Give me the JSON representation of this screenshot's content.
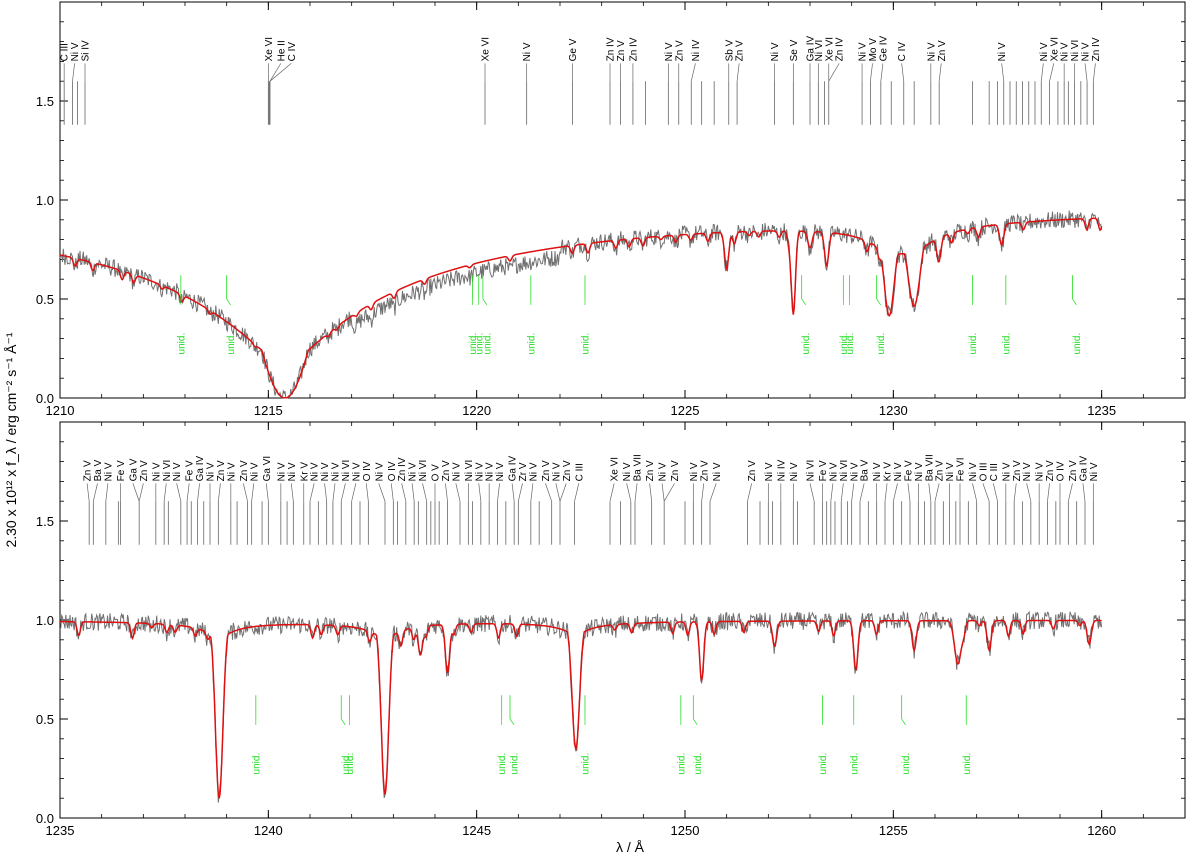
{
  "chart_data": {
    "type": "line",
    "xlabel": "λ / Å",
    "ylabel": "2.30 x 10¹² x f_λ / erg cm⁻² s⁻¹ Å⁻¹",
    "series_colors": {
      "observed": "#707070",
      "model": "#dd1111",
      "identified": "#666666",
      "unidentified": "#22dd22"
    },
    "panels": [
      {
        "xlim": [
          1210,
          1237
        ],
        "ylim": [
          0,
          2.0
        ],
        "xticks": [
          1210,
          1215,
          1220,
          1225,
          1230,
          1235
        ],
        "yticks": [
          "0.0",
          "0.5",
          "1.0",
          "1.5"
        ],
        "ytick_values": [
          0.0,
          0.5,
          1.0,
          1.5
        ],
        "model_end": 1235,
        "absorption_lines": [
          {
            "center": 1215.4,
            "depth": 1.0,
            "width": 0.75,
            "wings": 0.85
          },
          {
            "center": 1229.9,
            "depth": 0.5,
            "width": 0.12,
            "wings": 0.15
          },
          {
            "center": 1230.5,
            "depth": 0.45,
            "width": 0.14,
            "wings": 0.15
          },
          {
            "center": 1227.6,
            "depth": 0.5,
            "width": 0.05,
            "wings": 0.0
          },
          {
            "center": 1228.4,
            "depth": 0.2,
            "width": 0.05,
            "wings": 0.0
          },
          {
            "center": 1226.0,
            "depth": 0.22,
            "width": 0.05,
            "wings": 0.0
          },
          {
            "center": 1232.6,
            "depth": 0.12,
            "width": 0.05,
            "wings": 0.0
          },
          {
            "center": 1231.1,
            "depth": 0.1,
            "width": 0.05,
            "wings": 0.0
          },
          {
            "center": 1228.0,
            "depth": 0.1,
            "width": 0.05,
            "wings": 0.0
          }
        ],
        "ion_labels": [
          {
            "label": "C III",
            "x": 1210.1
          },
          {
            "label": "Ni V",
            "x": 1210.35
          },
          {
            "label": "Si IV",
            "x": 1210.6
          },
          {
            "label": "Xe VI",
            "x": 1215.0
          },
          {
            "label": "He II",
            "x": 1215.3
          },
          {
            "label": "C IV",
            "x": 1215.55
          },
          {
            "label": "Xe VI",
            "x": 1220.2
          },
          {
            "label": "Ni V",
            "x": 1221.2
          },
          {
            "label": "Ge V",
            "x": 1222.3
          },
          {
            "label": "Zn IV",
            "x": 1223.2
          },
          {
            "label": "Zn V",
            "x": 1223.45
          },
          {
            "label": "Zn IV",
            "x": 1223.75
          },
          {
            "label": "Ni V",
            "x": 1224.6
          },
          {
            "label": "Zn V",
            "x": 1224.85
          },
          {
            "label": "Ni IV",
            "x": 1225.25
          },
          {
            "label": "Sb V",
            "x": 1226.05
          },
          {
            "label": "Zn V",
            "x": 1226.3
          },
          {
            "label": "Ni V",
            "x": 1227.15
          },
          {
            "label": "Se V",
            "x": 1227.6
          },
          {
            "label": "Ga IV",
            "x": 1228.0
          },
          {
            "label": "Ni VI",
            "x": 1228.2
          },
          {
            "label": "Xe VI",
            "x": 1228.45
          },
          {
            "label": "Zn IV",
            "x": 1228.7
          },
          {
            "label": "Ni V",
            "x": 1229.25
          },
          {
            "label": "Mo V",
            "x": 1229.5
          },
          {
            "label": "Ge IV",
            "x": 1229.75
          },
          {
            "label": "C IV",
            "x": 1230.2
          },
          {
            "label": "Ni V",
            "x": 1230.9
          },
          {
            "label": "Zn V",
            "x": 1231.15
          },
          {
            "label": "Ni V",
            "x": 1232.6
          },
          {
            "label": "Ni V",
            "x": 1233.6
          },
          {
            "label": "Xe VI",
            "x": 1233.85
          },
          {
            "label": "Ni V",
            "x": 1234.1
          },
          {
            "label": "Ni VI",
            "x": 1234.35
          },
          {
            "label": "Ni V",
            "x": 1234.6
          },
          {
            "label": "Zn IV",
            "x": 1234.85
          }
        ],
        "ion_ticks": [
          1210.1,
          1210.3,
          1210.42,
          1210.6,
          1215.0,
          1215.02,
          1215.04,
          1220.2,
          1221.2,
          1222.3,
          1223.2,
          1223.45,
          1223.75,
          1224.05,
          1224.6,
          1224.85,
          1225.15,
          1225.4,
          1225.7,
          1226.05,
          1226.25,
          1227.15,
          1227.6,
          1228.0,
          1228.2,
          1228.35,
          1228.45,
          1229.25,
          1229.45,
          1229.7,
          1229.95,
          1230.25,
          1230.5,
          1230.9,
          1231.1,
          1231.9,
          1232.3,
          1232.5,
          1232.65,
          1232.8,
          1232.95,
          1233.1,
          1233.25,
          1233.4,
          1233.55,
          1233.75,
          1233.95,
          1234.1,
          1234.2,
          1234.35,
          1234.5,
          1234.65,
          1234.8
        ],
        "unid": [
          1212.9,
          1214.0,
          1219.9,
          1220.05,
          1220.15,
          1221.3,
          1222.6,
          1227.8,
          1228.8,
          1228.95,
          1229.6,
          1231.9,
          1232.7,
          1234.3
        ],
        "unid_label": "unid."
      },
      {
        "xlim": [
          1235,
          1262
        ],
        "ylim": [
          0,
          2.0
        ],
        "xticks": [
          1235,
          1240,
          1245,
          1250,
          1255,
          1260
        ],
        "yticks": [
          "0.0",
          "0.5",
          "1.0",
          "1.5"
        ],
        "ytick_values": [
          0.0,
          0.5,
          1.0,
          1.5
        ],
        "model_end": 1260,
        "absorption_lines": [
          {
            "center": 1238.82,
            "depth": 0.9,
            "width": 0.09,
            "wings": 0.1
          },
          {
            "center": 1242.8,
            "depth": 0.88,
            "width": 0.09,
            "wings": 0.1
          },
          {
            "center": 1247.38,
            "depth": 0.65,
            "width": 0.09,
            "wings": 0.08
          },
          {
            "center": 1244.3,
            "depth": 0.25,
            "width": 0.05,
            "wings": 0.0
          },
          {
            "center": 1243.65,
            "depth": 0.15,
            "width": 0.05,
            "wings": 0.0
          },
          {
            "center": 1250.4,
            "depth": 0.3,
            "width": 0.05,
            "wings": 0.0
          },
          {
            "center": 1254.1,
            "depth": 0.25,
            "width": 0.05,
            "wings": 0.0
          },
          {
            "center": 1256.55,
            "depth": 0.22,
            "width": 0.08,
            "wings": 0.0
          },
          {
            "center": 1257.3,
            "depth": 0.15,
            "width": 0.05,
            "wings": 0.0
          },
          {
            "center": 1255.5,
            "depth": 0.15,
            "width": 0.05,
            "wings": 0.0
          },
          {
            "center": 1259.7,
            "depth": 0.12,
            "width": 0.05,
            "wings": 0.0
          },
          {
            "center": 1252.15,
            "depth": 0.13,
            "width": 0.05,
            "wings": 0.0
          }
        ],
        "ion_labels": [
          {
            "label": "Zn V",
            "x": 1235.65
          },
          {
            "label": "Ba V",
            "x": 1235.9
          },
          {
            "label": "Ni V",
            "x": 1236.15
          },
          {
            "label": "Fe V",
            "x": 1236.45
          },
          {
            "label": "Ga V",
            "x": 1236.75
          },
          {
            "label": "Zn V",
            "x": 1237.0
          },
          {
            "label": "Ni V",
            "x": 1237.3
          },
          {
            "label": "Ni VI",
            "x": 1237.55
          },
          {
            "label": "Ni V",
            "x": 1237.8
          },
          {
            "label": "Fe V",
            "x": 1238.1
          },
          {
            "label": "Ga IV",
            "x": 1238.35
          },
          {
            "label": "Ni V",
            "x": 1238.6
          },
          {
            "label": "Zn V",
            "x": 1238.85
          },
          {
            "label": "Ni V",
            "x": 1239.1
          },
          {
            "label": "Zn V",
            "x": 1239.4
          },
          {
            "label": "Ni V",
            "x": 1239.65
          },
          {
            "label": "Ga VI",
            "x": 1239.95
          },
          {
            "label": "Ni V",
            "x": 1240.3
          },
          {
            "label": "Ni V",
            "x": 1240.55
          },
          {
            "label": "Kr V",
            "x": 1240.85
          },
          {
            "label": "Ni V",
            "x": 1241.1
          },
          {
            "label": "Ni V",
            "x": 1241.35
          },
          {
            "label": "Ni V",
            "x": 1241.6
          },
          {
            "label": "Ni VI",
            "x": 1241.85
          },
          {
            "label": "Ni V",
            "x": 1242.1
          },
          {
            "label": "O IV",
            "x": 1242.35
          },
          {
            "label": "Ni V",
            "x": 1242.65
          },
          {
            "label": "O IV",
            "x": 1242.95
          },
          {
            "label": "Zn IV",
            "x": 1243.2
          },
          {
            "label": "Ni V",
            "x": 1243.45
          },
          {
            "label": "Ni VI",
            "x": 1243.7
          },
          {
            "label": "O V",
            "x": 1244.0
          },
          {
            "label": "Zn V",
            "x": 1244.25
          },
          {
            "label": "Ni V",
            "x": 1244.5
          },
          {
            "label": "Ni VI",
            "x": 1244.8
          },
          {
            "label": "Ni V",
            "x": 1245.05
          },
          {
            "label": "Ni V",
            "x": 1245.3
          },
          {
            "label": "Ni V",
            "x": 1245.55
          },
          {
            "label": "Ga IV",
            "x": 1245.85
          },
          {
            "label": "Zr V",
            "x": 1246.1
          },
          {
            "label": "Ni V",
            "x": 1246.35
          },
          {
            "label": "Zn V",
            "x": 1246.65
          },
          {
            "label": "Ni V",
            "x": 1246.9
          },
          {
            "label": "Zn V",
            "x": 1247.15
          },
          {
            "label": "C III",
            "x": 1247.45
          },
          {
            "label": "Xe VI",
            "x": 1248.3
          },
          {
            "label": "Ni V",
            "x": 1248.6
          },
          {
            "label": "Ba VII",
            "x": 1248.85
          },
          {
            "label": "Zn V",
            "x": 1249.15
          },
          {
            "label": "Ni V",
            "x": 1249.45
          },
          {
            "label": "Zn V",
            "x": 1249.75
          },
          {
            "label": "Ni V",
            "x": 1250.2
          },
          {
            "label": "Zn V",
            "x": 1250.45
          },
          {
            "label": "Ni V",
            "x": 1250.75
          },
          {
            "label": "Zn V",
            "x": 1251.6
          },
          {
            "label": "Ni V",
            "x": 1252.0
          },
          {
            "label": "Ni IV",
            "x": 1252.3
          },
          {
            "label": "Ni V",
            "x": 1252.6
          },
          {
            "label": "Ni VI",
            "x": 1253.0
          },
          {
            "label": "Fe V",
            "x": 1253.3
          },
          {
            "label": "Ni V",
            "x": 1253.55
          },
          {
            "label": "Ni VI",
            "x": 1253.8
          },
          {
            "label": "Ni V",
            "x": 1254.05
          },
          {
            "label": "Ba V",
            "x": 1254.3
          },
          {
            "label": "Ni V",
            "x": 1254.6
          },
          {
            "label": "Kr V",
            "x": 1254.85
          },
          {
            "label": "Ni V",
            "x": 1255.1
          },
          {
            "label": "Fe V",
            "x": 1255.35
          },
          {
            "label": "Ni V",
            "x": 1255.6
          },
          {
            "label": "Ba VII",
            "x": 1255.85
          },
          {
            "label": "Zn V",
            "x": 1256.1
          },
          {
            "label": "Ni V",
            "x": 1256.35
          },
          {
            "label": "Fe VI",
            "x": 1256.6
          },
          {
            "label": "Ni V",
            "x": 1256.9
          },
          {
            "label": "O III",
            "x": 1257.15
          },
          {
            "label": "C III",
            "x": 1257.4
          },
          {
            "label": "Ni V",
            "x": 1257.7
          },
          {
            "label": "Zn V",
            "x": 1257.95
          },
          {
            "label": "Ni V",
            "x": 1258.2
          },
          {
            "label": "Ni V",
            "x": 1258.5
          },
          {
            "label": "Zn V",
            "x": 1258.75
          },
          {
            "label": "O IV",
            "x": 1259.0
          },
          {
            "label": "Zn V",
            "x": 1259.3
          },
          {
            "label": "Ga IV",
            "x": 1259.55
          },
          {
            "label": "Ni V",
            "x": 1259.8
          }
        ],
        "ion_ticks": [
          1235.7,
          1235.8,
          1236.1,
          1236.4,
          1236.45,
          1236.9,
          1237.3,
          1237.5,
          1237.6,
          1237.9,
          1238.05,
          1238.15,
          1238.3,
          1238.45,
          1238.6,
          1238.8,
          1239.1,
          1239.25,
          1239.5,
          1239.6,
          1239.85,
          1240.0,
          1240.3,
          1240.45,
          1240.6,
          1240.85,
          1241.0,
          1241.2,
          1241.4,
          1241.55,
          1241.75,
          1242.0,
          1242.2,
          1242.4,
          1242.8,
          1243.0,
          1243.1,
          1243.3,
          1243.5,
          1243.6,
          1243.8,
          1243.9,
          1244.0,
          1244.1,
          1244.3,
          1244.6,
          1244.8,
          1244.9,
          1245.1,
          1245.3,
          1245.5,
          1245.7,
          1245.9,
          1246.0,
          1246.3,
          1246.5,
          1246.8,
          1247.0,
          1247.35,
          1248.2,
          1248.45,
          1248.7,
          1248.8,
          1249.2,
          1249.5,
          1250.0,
          1250.2,
          1250.4,
          1250.6,
          1251.5,
          1251.8,
          1252.0,
          1252.1,
          1252.3,
          1252.6,
          1252.7,
          1253.1,
          1253.3,
          1253.4,
          1253.5,
          1253.6,
          1253.75,
          1253.9,
          1254.0,
          1254.2,
          1254.4,
          1254.6,
          1254.8,
          1255.0,
          1255.2,
          1255.4,
          1255.6,
          1255.75,
          1255.9,
          1256.0,
          1256.2,
          1256.35,
          1256.5,
          1256.6,
          1256.8,
          1257.0,
          1257.3,
          1257.5,
          1257.7,
          1257.9,
          1258.1,
          1258.3,
          1258.5,
          1258.7,
          1258.9,
          1259.0,
          1259.2,
          1259.4,
          1259.6,
          1259.8
        ],
        "unid": [
          1239.7,
          1241.75,
          1241.95,
          1245.6,
          1245.8,
          1247.6,
          1249.9,
          1250.2,
          1253.3,
          1254.05,
          1255.2,
          1256.75
        ],
        "unid_label": "unid."
      }
    ]
  }
}
